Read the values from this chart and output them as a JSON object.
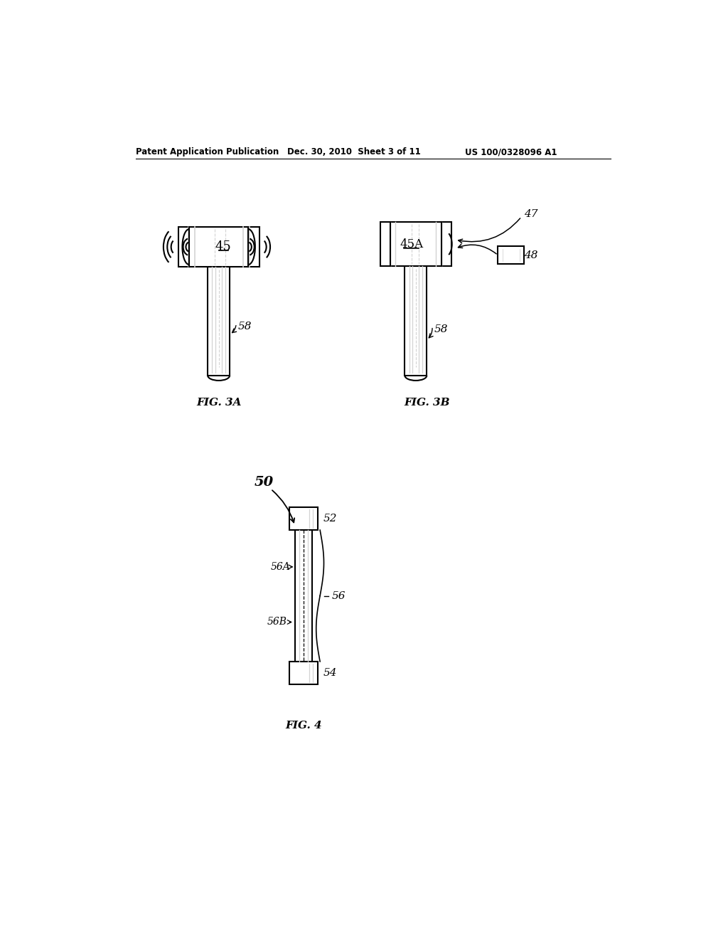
{
  "bg_color": "#ffffff",
  "header_left": "Patent Application Publication",
  "header_center": "Dec. 30, 2010  Sheet 3 of 11",
  "header_right": "US 100/0328096 A1",
  "fig3a_label": "FIG. 3A",
  "fig3b_label": "FIG. 3B",
  "fig4_label": "FIG. 4",
  "label_45": "45",
  "label_45A": "45A",
  "label_47": "47",
  "label_48": "48",
  "label_58_3a": "58",
  "label_58_3b": "58",
  "label_50": "50",
  "label_52": "52",
  "label_54": "54",
  "label_56": "56",
  "label_56A": "56A",
  "label_56B": "56B"
}
